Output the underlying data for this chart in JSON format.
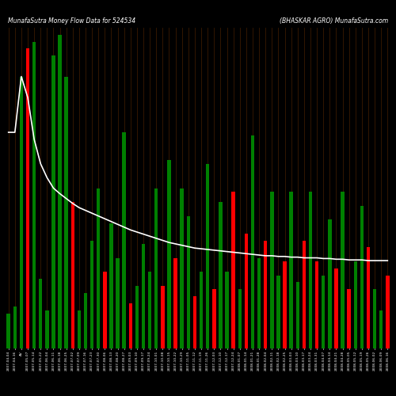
{
  "title_left": "MunafaSutra Money Flow Data for 524534",
  "title_right": "(BHASKAR AGRO) MunafaSutra.com",
  "background_color": "#000000",
  "colors": [
    "green",
    "green",
    "green",
    "red",
    "green",
    "green",
    "green",
    "green",
    "green",
    "green",
    "red",
    "green",
    "green",
    "green",
    "green",
    "red",
    "green",
    "green",
    "green",
    "red",
    "green",
    "green",
    "green",
    "green",
    "red",
    "green",
    "red",
    "green",
    "green",
    "red",
    "green",
    "green",
    "red",
    "green",
    "green",
    "red",
    "green",
    "red",
    "green",
    "green",
    "red",
    "green",
    "green",
    "red",
    "green",
    "green",
    "red",
    "green",
    "red",
    "green",
    "green",
    "red",
    "green",
    "red",
    "green",
    "green",
    "red",
    "green",
    "green",
    "red"
  ],
  "heights": [
    50,
    60,
    390,
    430,
    440,
    100,
    55,
    420,
    450,
    390,
    210,
    55,
    80,
    155,
    230,
    110,
    180,
    130,
    310,
    65,
    90,
    150,
    110,
    230,
    90,
    270,
    130,
    230,
    190,
    75,
    110,
    265,
    85,
    210,
    110,
    225,
    85,
    165,
    305,
    130,
    155,
    225,
    105,
    125,
    225,
    95,
    155,
    225,
    125,
    105,
    185,
    115,
    225,
    85,
    125,
    205,
    145,
    85,
    55,
    105
  ],
  "line_vals": [
    310,
    310,
    390,
    360,
    300,
    265,
    245,
    230,
    222,
    215,
    208,
    202,
    198,
    194,
    190,
    186,
    182,
    178,
    174,
    170,
    167,
    164,
    161,
    158,
    155,
    152,
    150,
    148,
    146,
    144,
    143,
    142,
    141,
    140,
    139,
    138,
    137,
    136,
    135,
    134,
    133,
    133,
    132,
    132,
    131,
    131,
    130,
    130,
    130,
    129,
    129,
    128,
    128,
    127,
    127,
    127,
    126,
    126,
    126,
    126
  ],
  "xlabels": [
    "2007-04-04",
    "2007-04-16",
    "AV",
    "2007-05-07",
    "2007-05-14",
    "2007-05-22",
    "2007-06-04",
    "2007-06-11",
    "2007-06-18",
    "2007-06-25",
    "2007-07-02",
    "2007-07-09",
    "2007-07-16",
    "2007-07-23",
    "2007-07-30",
    "2007-08-06",
    "2007-08-13",
    "2007-08-20",
    "2007-08-27",
    "2007-09-03",
    "2007-09-10",
    "2007-09-17",
    "2007-09-24",
    "2007-10-01",
    "2007-10-08",
    "2007-10-15",
    "2007-10-22",
    "2007-10-29",
    "2007-11-05",
    "2007-11-12",
    "2007-11-19",
    "2007-11-26",
    "2007-12-03",
    "2007-12-10",
    "2007-12-17",
    "2007-12-24",
    "2008-01-07",
    "2008-01-14",
    "2008-01-21",
    "2008-01-28",
    "2008-02-04",
    "2008-02-11",
    "2008-02-18",
    "2008-02-25",
    "2008-03-03",
    "2008-03-10",
    "2008-03-17",
    "2008-03-24",
    "2008-03-31",
    "2008-04-07",
    "2008-04-14",
    "2008-04-21",
    "2008-04-28",
    "2008-05-05",
    "2008-05-12",
    "2008-05-19",
    "2008-05-26",
    "2008-06-02",
    "2008-06-09",
    "2008-06-16"
  ],
  "line_color": "#ffffff",
  "line_width": 1.2,
  "ylim": [
    0,
    460
  ],
  "bar_width": 0.55,
  "grid_color": "#3a1a00",
  "figsize": [
    5.0,
    5.0
  ],
  "dpi": 100
}
